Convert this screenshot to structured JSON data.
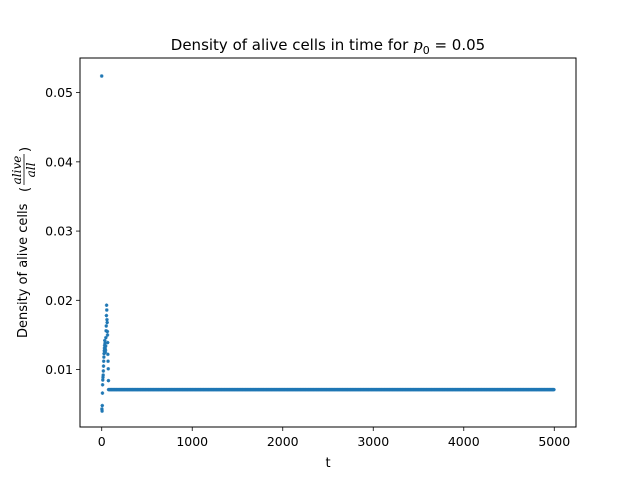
{
  "chart_data": {
    "type": "scatter",
    "title": {
      "prefix": "Density of alive cells in time for ",
      "math_symbol": "p",
      "math_subscript": "0",
      "math_rest": " = 0.05"
    },
    "xlabel": "t",
    "ylabel": {
      "prefix": "Density of alive cells ",
      "frac_num": "alive",
      "frac_den": "all"
    },
    "xlim": [
      -240,
      5240
    ],
    "ylim": [
      0.0017,
      0.055
    ],
    "xticks": [
      0,
      1000,
      2000,
      3000,
      4000,
      5000
    ],
    "yticks": [
      0.01,
      0.02,
      0.03,
      0.04,
      0.05
    ],
    "ytick_labels": [
      "0.01",
      "0.02",
      "0.03",
      "0.04",
      "0.05"
    ],
    "marker_color": "#1f77b4",
    "marker": "star",
    "grid": false,
    "early_points": {
      "x": [
        0,
        2,
        4,
        6,
        8,
        10,
        12,
        14,
        16,
        18,
        20,
        22,
        24,
        26,
        28,
        30,
        32,
        34,
        36,
        38,
        40,
        42,
        44,
        46,
        48,
        50,
        52,
        54,
        56,
        58,
        60,
        62,
        64,
        66,
        68,
        70,
        72,
        74
      ],
      "y": [
        0.0524,
        0.0043,
        0.004,
        0.0048,
        0.0066,
        0.0078,
        0.0085,
        0.0089,
        0.0092,
        0.0098,
        0.0105,
        0.0112,
        0.0118,
        0.0123,
        0.0127,
        0.0131,
        0.0135,
        0.0142,
        0.0138,
        0.013,
        0.0125,
        0.0128,
        0.0134,
        0.0146,
        0.0156,
        0.0163,
        0.0178,
        0.0193,
        0.0186,
        0.0172,
        0.0168,
        0.0155,
        0.015,
        0.0139,
        0.0122,
        0.0112,
        0.0101,
        0.0084
      ]
    },
    "plateau": {
      "x_start": 76,
      "x_end": 4999,
      "x_step": 8,
      "value": 0.0071
    }
  }
}
